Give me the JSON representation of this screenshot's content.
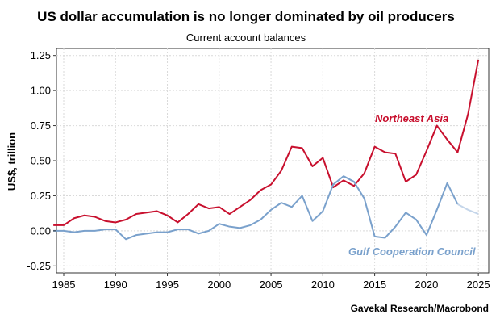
{
  "chart_data": {
    "type": "line",
    "title": "US dollar accumulation is no longer dominated by oil producers",
    "subtitle": "Current account balances",
    "ylabel": "US$, trillion",
    "source": "Gavekal Research/Macrobond",
    "xlim": [
      1984.3,
      2026
    ],
    "ylim": [
      -0.3,
      1.3
    ],
    "x_ticks": [
      1985,
      1990,
      1995,
      2000,
      2005,
      2010,
      2015,
      2020,
      2025
    ],
    "x_tick_labels": [
      "1985",
      "1990",
      "1995",
      "2000",
      "2005",
      "2010",
      "2015",
      "2020",
      "2025"
    ],
    "y_ticks": [
      -0.25,
      0,
      0.25,
      0.5,
      0.75,
      1,
      1.25
    ],
    "y_tick_labels": [
      "-0.25",
      "0.00",
      "0.25",
      "0.50",
      "0.75",
      "1.00",
      "1.25"
    ],
    "grid": true,
    "series": [
      {
        "name": "Northeast Asia",
        "color": "#c8102e",
        "x": [
          1984,
          1985,
          1986,
          1987,
          1988,
          1989,
          1990,
          1991,
          1992,
          1993,
          1994,
          1995,
          1996,
          1997,
          1998,
          1999,
          2000,
          2001,
          2002,
          2003,
          2004,
          2005,
          2006,
          2007,
          2008,
          2009,
          2010,
          2011,
          2012,
          2013,
          2014,
          2015,
          2016,
          2017,
          2018,
          2019,
          2020,
          2021,
          2022,
          2023,
          2024,
          2025
        ],
        "values": [
          0.04,
          0.04,
          0.09,
          0.11,
          0.1,
          0.07,
          0.06,
          0.08,
          0.12,
          0.13,
          0.14,
          0.11,
          0.06,
          0.12,
          0.19,
          0.16,
          0.17,
          0.12,
          0.17,
          0.22,
          0.29,
          0.33,
          0.43,
          0.6,
          0.59,
          0.46,
          0.52,
          0.31,
          0.36,
          0.32,
          0.41,
          0.6,
          0.56,
          0.55,
          0.35,
          0.4,
          0.57,
          0.75,
          0.65,
          0.56,
          0.83,
          1.22
        ]
      },
      {
        "name": "Gulf Cooperation Council",
        "color": "#7aa1cc",
        "x": [
          1984,
          1985,
          1986,
          1987,
          1988,
          1989,
          1990,
          1991,
          1992,
          1993,
          1994,
          1995,
          1996,
          1997,
          1998,
          1999,
          2000,
          2001,
          2002,
          2003,
          2004,
          2005,
          2006,
          2007,
          2008,
          2009,
          2010,
          2011,
          2012,
          2013,
          2014,
          2015,
          2016,
          2017,
          2018,
          2019,
          2020,
          2021,
          2022,
          2023,
          2024,
          2025
        ],
        "values": [
          0.0,
          0.0,
          -0.01,
          0.0,
          0.0,
          0.01,
          0.01,
          -0.06,
          -0.03,
          -0.02,
          -0.01,
          -0.01,
          0.01,
          0.01,
          -0.02,
          0.0,
          0.05,
          0.03,
          0.02,
          0.04,
          0.08,
          0.15,
          0.2,
          0.17,
          0.25,
          0.07,
          0.14,
          0.33,
          0.39,
          0.35,
          0.23,
          -0.04,
          -0.05,
          0.03,
          0.13,
          0.08,
          -0.03,
          0.15,
          0.34,
          0.19,
          0.15,
          0.12
        ],
        "forecast_from": 2023,
        "forecast_color": "#c5d6ea"
      }
    ]
  }
}
